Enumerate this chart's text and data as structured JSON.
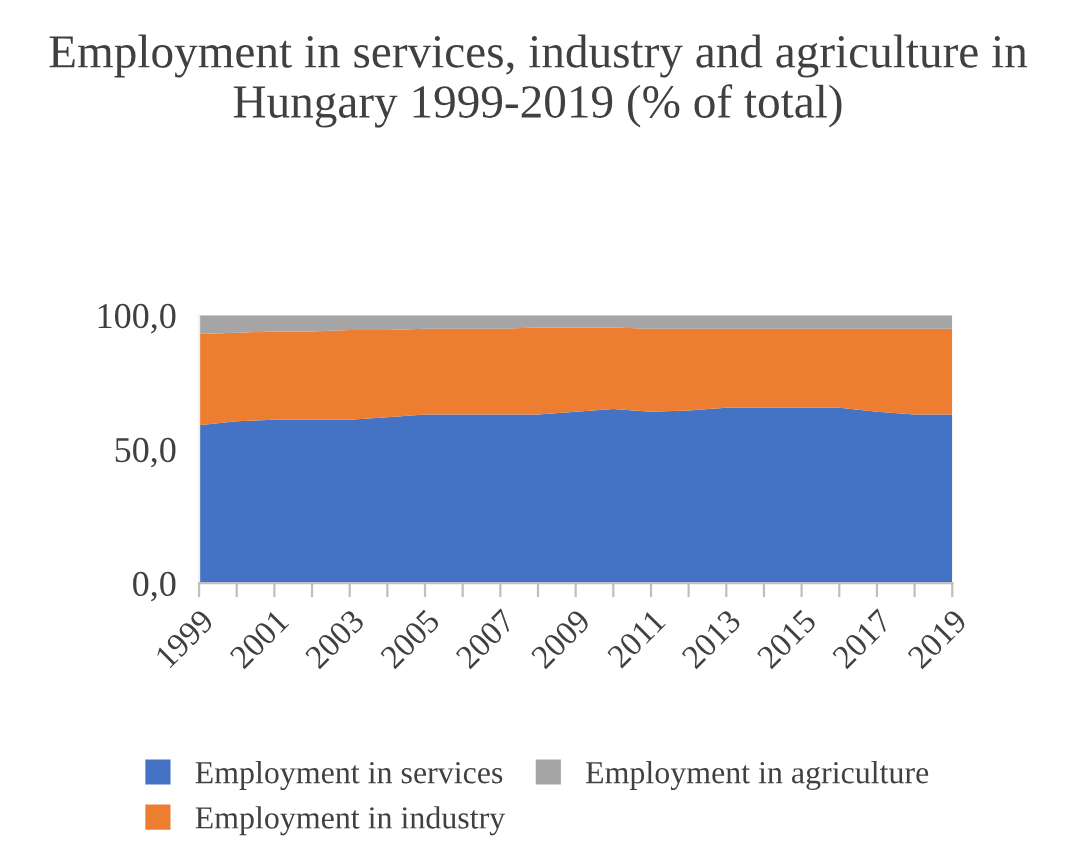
{
  "chart_data": {
    "type": "area",
    "stacked": true,
    "title": "Employment in services, industry and agriculture in Hungary 1999-2019 (% of total)",
    "x": [
      1999,
      2000,
      2001,
      2002,
      2003,
      2004,
      2005,
      2006,
      2007,
      2008,
      2009,
      2010,
      2011,
      2012,
      2013,
      2014,
      2015,
      2016,
      2017,
      2018,
      2019
    ],
    "series": [
      {
        "name": "Employment in services",
        "color": "#4472c4",
        "values": [
          59,
          60.5,
          61,
          61,
          61,
          62,
          63,
          63,
          63,
          63,
          64,
          65,
          64,
          64.5,
          65.5,
          65.5,
          65.5,
          65.5,
          64,
          63,
          63
        ]
      },
      {
        "name": "Employment in industry",
        "color": "#ed7d31",
        "values": [
          34,
          33,
          33,
          33,
          33.5,
          32.5,
          32,
          32,
          32,
          32.5,
          31.5,
          30.5,
          31,
          30.5,
          29.5,
          29.5,
          29.5,
          29.5,
          31,
          32,
          32
        ]
      },
      {
        "name": "Employment in agriculture",
        "color": "#a5a5a5",
        "values": [
          7,
          6.5,
          6,
          6,
          5.5,
          5.5,
          5,
          5,
          5,
          4.5,
          4.5,
          4.5,
          5,
          5,
          5,
          5,
          5,
          5,
          5,
          5,
          5
        ]
      }
    ],
    "xlim": [
      1999,
      2019
    ],
    "xticks": [
      1999,
      {
        "value": 2000,
        "label": null
      },
      2001,
      {
        "value": 2002,
        "label": null
      },
      2003,
      {
        "value": 2004,
        "label": null
      },
      2005,
      {
        "value": 2006,
        "label": null
      },
      2007,
      {
        "value": 2008,
        "label": null
      },
      2009,
      {
        "value": 2010,
        "label": null
      },
      2011,
      {
        "value": 2012,
        "label": null
      },
      2013,
      {
        "value": 2014,
        "label": null
      },
      2015,
      {
        "value": 2016,
        "label": null
      },
      2017,
      {
        "value": 2018,
        "label": null
      },
      2019
    ],
    "ylim": [
      0,
      100
    ],
    "yticks": [
      {
        "value": 0,
        "label": "0,0"
      },
      {
        "value": 50,
        "label": "50,0"
      },
      {
        "value": 100,
        "label": "100,0"
      }
    ],
    "grid": false,
    "legend": "bottom"
  }
}
